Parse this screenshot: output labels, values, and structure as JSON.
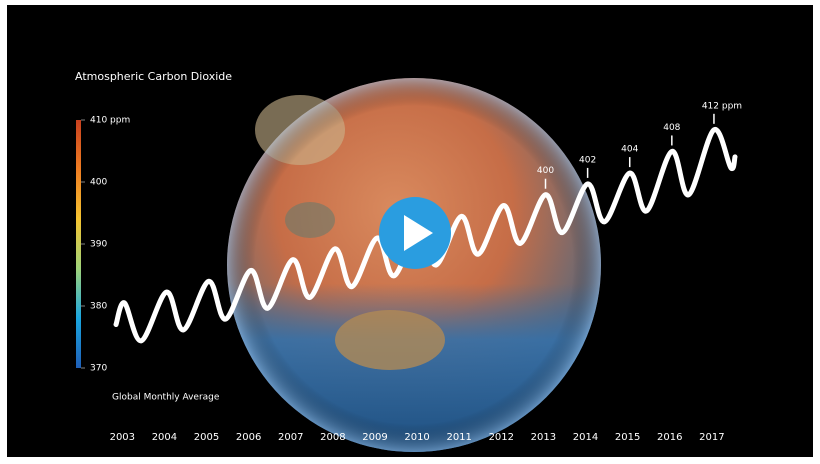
{
  "chart_data": {
    "type": "line",
    "title": "Atmospheric Carbon Dioxide",
    "note": "Global Monthly Average",
    "xlim": [
      2002.85,
      2017.55
    ],
    "ylim": [
      370,
      414
    ],
    "xticks": [
      2003,
      2004,
      2005,
      2006,
      2007,
      2008,
      2009,
      2010,
      2011,
      2012,
      2013,
      2014,
      2015,
      2016,
      2017
    ],
    "series": [
      {
        "color": "#ffffff",
        "x": [
          2002.85,
          2003.05,
          2003.45,
          2004.05,
          2004.45,
          2005.05,
          2005.45,
          2006.05,
          2006.45,
          2007.05,
          2007.45,
          2008.05,
          2008.45,
          2009.05,
          2009.45,
          2010.05,
          2010.45,
          2011.05,
          2011.45,
          2012.05,
          2012.45,
          2013.05,
          2013.45,
          2014.05,
          2014.45,
          2015.05,
          2015.45,
          2016.05,
          2016.45,
          2017.05,
          2017.45,
          2017.55
        ],
        "values": [
          376,
          380,
          373,
          382,
          375,
          384,
          377,
          386,
          379,
          388,
          381,
          390,
          383,
          392,
          385,
          394,
          387,
          396,
          389,
          398,
          391,
          400,
          393,
          402,
          395,
          404,
          397,
          408,
          400,
          412,
          405,
          407
        ]
      }
    ],
    "annotations": [
      {
        "x": 2013.05,
        "value": 400
      },
      {
        "x": 2014.05,
        "value": 402
      },
      {
        "x": 2015.05,
        "value": 404
      },
      {
        "x": 2016.05,
        "value": 408
      },
      {
        "x": 2017.05,
        "value": 412,
        "label": "412 ppm"
      }
    ],
    "colorbar": {
      "range": [
        370,
        410
      ],
      "colors": [
        "#1f5fb8",
        "#1aa6e0",
        "#9fd37a",
        "#f5c431",
        "#ef7d22",
        "#c8401f"
      ],
      "ticks": [
        370,
        380,
        390,
        400,
        {
          "value": 410,
          "label": "410 ppm"
        }
      ]
    }
  }
}
